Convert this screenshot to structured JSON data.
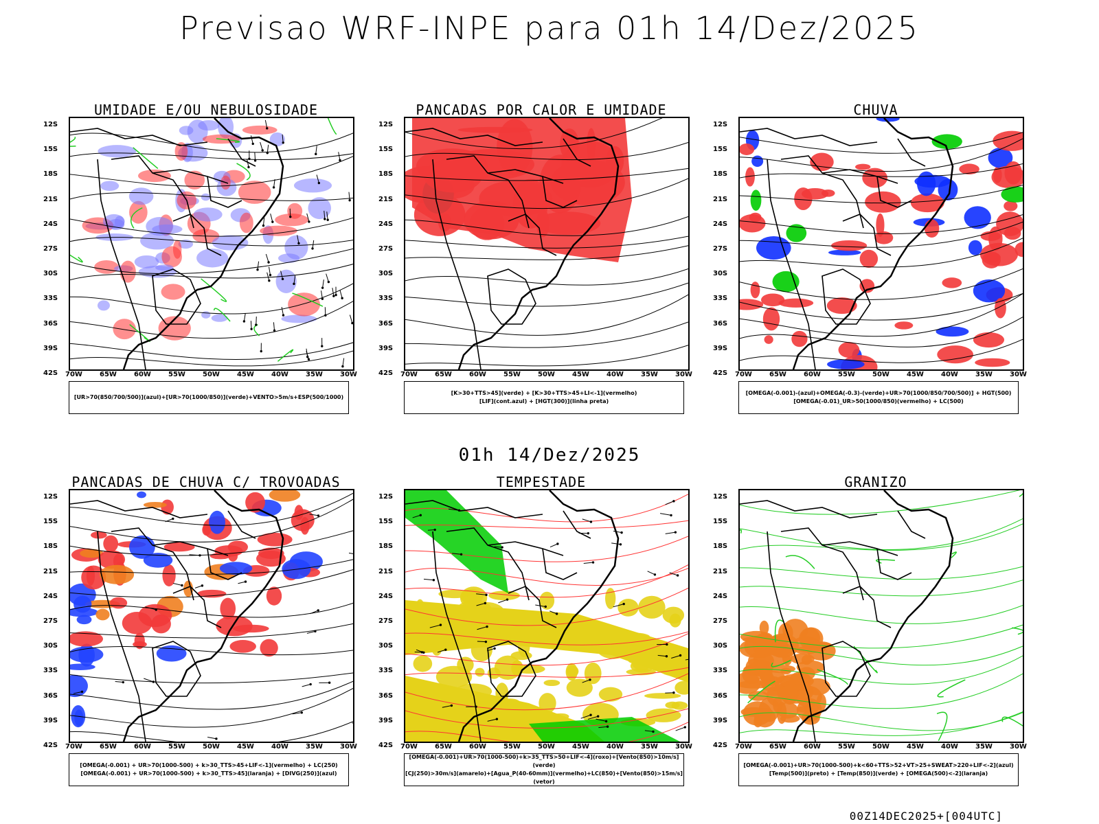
{
  "title": "Previsao WRF-INPE  para 01h 14/Dez/2025",
  "mid_title": "01h 14/Dez/2025",
  "footer": "00Z14DEC2025+[004UTC]",
  "lat_labels": [
    "12S",
    "15S",
    "18S",
    "21S",
    "24S",
    "27S",
    "30S",
    "33S",
    "36S",
    "39S",
    "42S"
  ],
  "lon_labels": [
    "70W",
    "65W",
    "60W",
    "55W",
    "50W",
    "45W",
    "40W",
    "35W",
    "30W"
  ],
  "panels": [
    {
      "title": "UMIDADE E/OU NEBULOSIDADE",
      "legend": [
        "[UR>70(850/700/500)](azul)+[UR>70(1000/850)](verde)+VENTO>5m/s+ESP(500/1000)"
      ],
      "colors": {
        "primary": "#7b7bff",
        "secondary": "#00cc00",
        "tertiary": "#ff3333"
      }
    },
    {
      "title": "PANCADAS POR CALOR E UMIDADE",
      "legend": [
        "[K>30+TTS>45](verde)  +  [K>30+TTS>45+LI<-1](vermelho)",
        "[LIF](cont.azul)  +  [HGT(300)](linha preta)"
      ],
      "colors": {
        "primary": "#f23a3a",
        "secondary": "#1a4848",
        "tertiary": "#2233ff"
      }
    },
    {
      "title": "CHUVA",
      "legend": [
        "[OMEGA(-0.001)-(azul)+OMEGA(-0.3)-(verde)+UR>70(1000/850/700/500)]  +  HGT(500)",
        "[OMEGA(-0.01)_UR>50(1000/850)(vermelho)  +  LC(500)"
      ],
      "colors": {
        "primary": "#f23a3a",
        "secondary": "#1030ff",
        "tertiary": "#00cc00"
      }
    },
    {
      "title": "PANCADAS DE CHUVA C/ TROVOADAS",
      "legend": [
        "[OMEGA(-0.001)  +  UR>70(1000-500)  +  k>30_TTS>45+LIF<-1](vermelho)  +  LC(250)",
        "[OMEGA(-0.001)  +  UR>70(1000-500)  +  k>30_TTS>45](laranja)  +  [DIVG(250)](azul)"
      ],
      "colors": {
        "primary": "#f23a3a",
        "secondary": "#f08020",
        "tertiary": "#2244ff"
      }
    },
    {
      "title": "TEMPESTADE",
      "legend": [
        "[OMEGA(-0.001)+UR>70(1000-500)+k>35_TTS>50+LIF<-4](roxo)+[Vento(850)>10m/s](verde)",
        "[CJ(250)>30m/s](amarelo)+[Agua_P(40-60mm)](vermelho)+LC(850)+[Vento(850)>15m/s](vetor)"
      ],
      "colors": {
        "primary": "#e5d21a",
        "secondary": "#00cc00",
        "tertiary": "#ff3333"
      }
    },
    {
      "title": "GRANIZO",
      "legend": [
        "[OMEGA(-0.001)+UR>70(1000-500)+k<60+TTS>52+VT>25+SWEAT>220+LIF<-2](azul)",
        "[Temp(500)](preto)  +  [Temp(850)](verde)  +  [OMEGA(500)<-2](laranja)"
      ],
      "colors": {
        "primary": "#22cc22",
        "secondary": "#f08020",
        "tertiary": "#000000"
      }
    }
  ]
}
